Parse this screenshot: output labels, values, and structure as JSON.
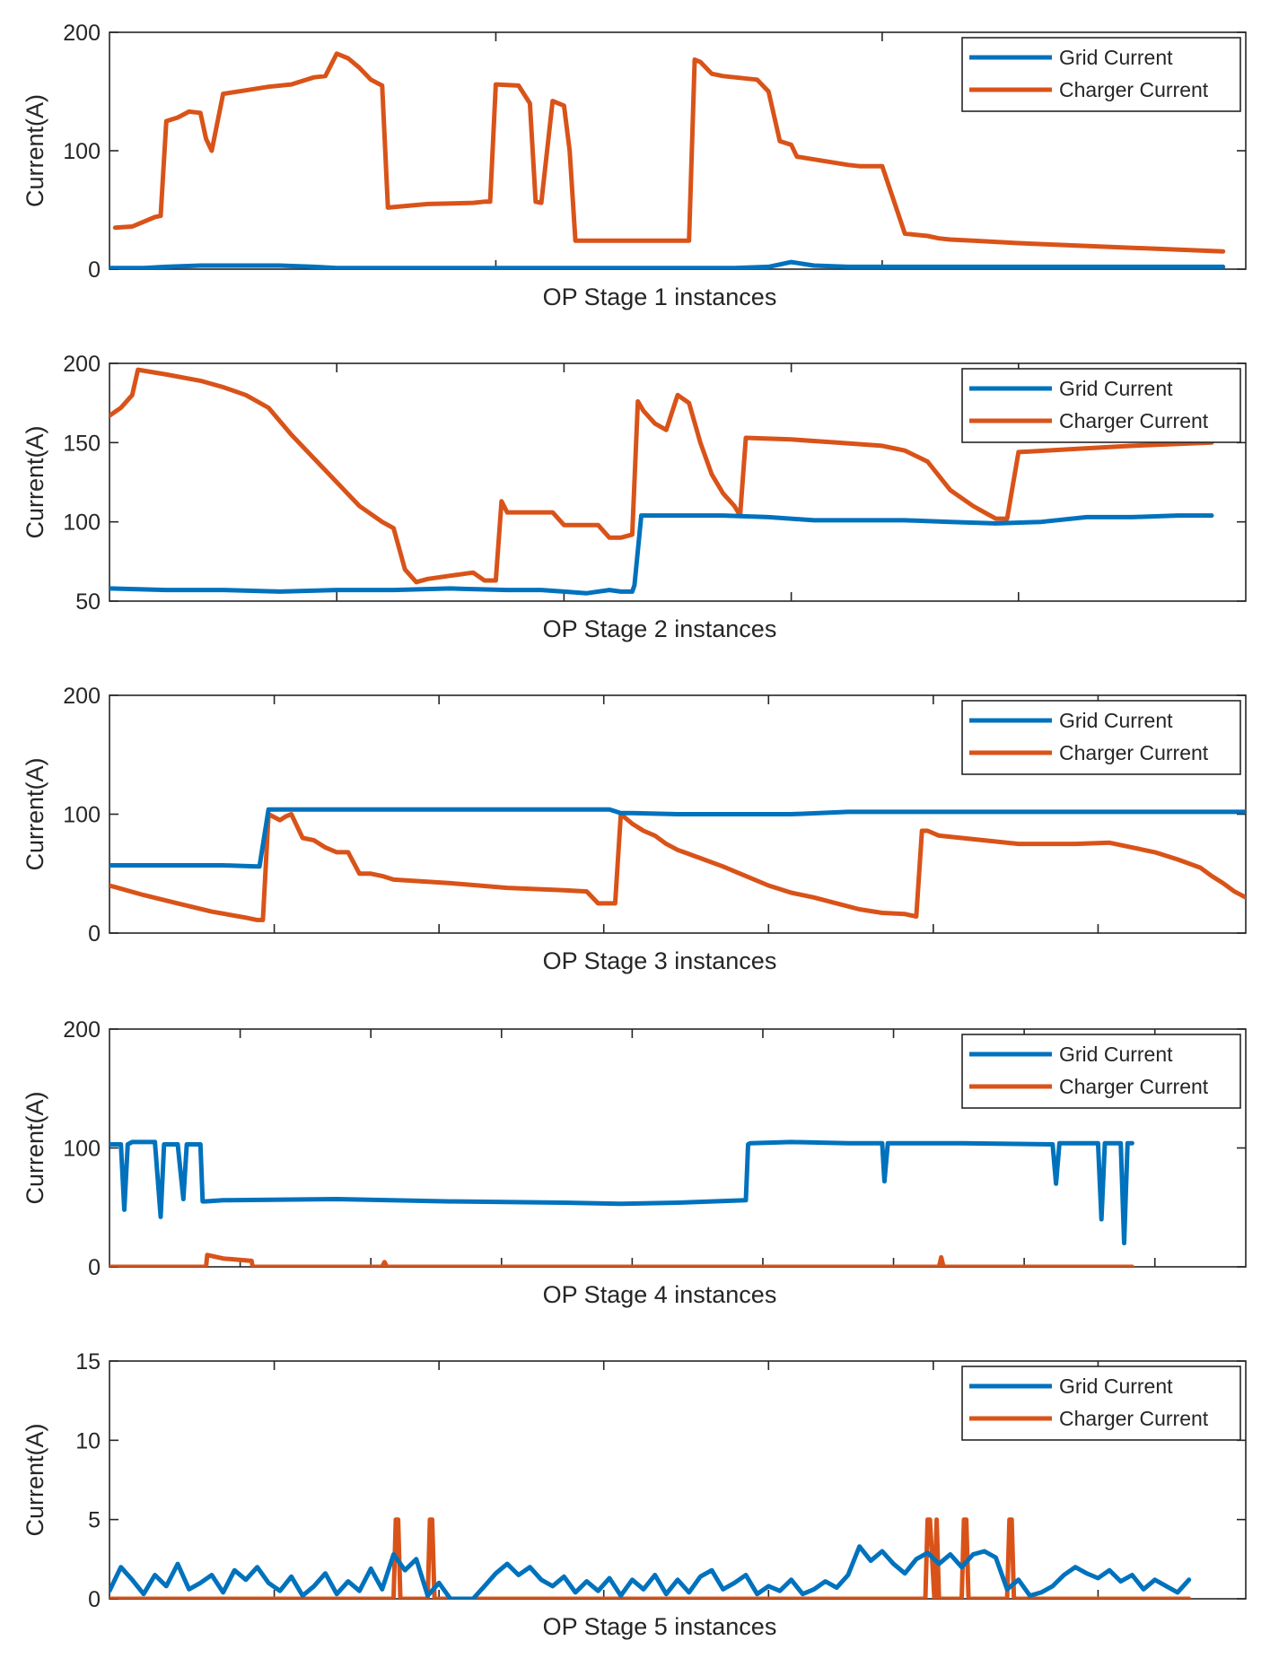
{
  "colors": {
    "grid_current": "#0072BD",
    "charger_current": "#D95319",
    "axis": "#262626"
  },
  "chart_data": [
    {
      "type": "line",
      "title": "",
      "xlabel": "OP Stage 1 instances",
      "ylabel": "Current(A)",
      "xlim": [
        0,
        100
      ],
      "ylim": [
        0,
        200
      ],
      "yticks": [
        0,
        100,
        200
      ],
      "xticks": [
        34,
        68
      ],
      "legend": {
        "position": "top-right",
        "entries": [
          "Grid Current",
          "Charger Current"
        ]
      },
      "series": [
        {
          "name": "Grid Current",
          "x": [
            0,
            3,
            5,
            8,
            12,
            15,
            18,
            20,
            25,
            30,
            35,
            40,
            45,
            50,
            55,
            58,
            60,
            62,
            65,
            70,
            80,
            90,
            98
          ],
          "values": [
            1,
            1,
            2,
            3,
            3,
            3,
            2,
            1,
            1,
            1,
            1,
            1,
            1,
            1,
            1,
            2,
            6,
            3,
            2,
            2,
            2,
            2,
            2
          ]
        },
        {
          "name": "Charger Current",
          "x": [
            0.5,
            2,
            3,
            4,
            4.5,
            5,
            6,
            7,
            8,
            8.5,
            9,
            10,
            12,
            14,
            16,
            17,
            18,
            19,
            20,
            21,
            22,
            23,
            24,
            24.5,
            28,
            32,
            33,
            33.5,
            34,
            36,
            37,
            37.5,
            38,
            39,
            39.5,
            40,
            40.5,
            41,
            45,
            50,
            51,
            51.5,
            52,
            53,
            54,
            57,
            58,
            59,
            60,
            60.5,
            65,
            66,
            68,
            70,
            72,
            73,
            74,
            76,
            80,
            90,
            98
          ],
          "values": [
            35,
            36,
            40,
            44,
            45,
            125,
            128,
            133,
            132,
            110,
            100,
            148,
            151,
            154,
            156,
            159,
            162,
            163,
            182,
            178,
            170,
            160,
            155,
            52,
            55,
            56,
            57,
            57,
            156,
            155,
            140,
            57,
            56,
            142,
            140,
            138,
            100,
            24,
            24,
            24,
            24,
            177,
            175,
            165,
            163,
            160,
            150,
            108,
            105,
            95,
            88,
            87,
            87,
            30,
            28,
            26,
            25,
            24,
            22,
            18,
            15
          ]
        }
      ]
    },
    {
      "type": "line",
      "title": "",
      "xlabel": "OP Stage 2 instances",
      "ylabel": "Current(A)",
      "xlim": [
        0,
        100
      ],
      "ylim": [
        50,
        200
      ],
      "yticks": [
        50,
        100,
        150,
        200
      ],
      "xticks": [
        20,
        40,
        60,
        80
      ],
      "legend": {
        "position": "top-right",
        "entries": [
          "Grid Current",
          "Charger Current"
        ]
      },
      "series": [
        {
          "name": "Grid Current",
          "x": [
            0,
            5,
            10,
            15,
            20,
            25,
            30,
            35,
            38,
            40,
            42,
            44,
            45,
            46,
            46.2,
            46.8,
            50,
            54,
            58,
            62,
            66,
            70,
            74,
            78,
            82,
            86,
            90,
            94,
            97
          ],
          "values": [
            58,
            57,
            57,
            56,
            57,
            57,
            58,
            57,
            57,
            56,
            55,
            57,
            56,
            56,
            60,
            104,
            104,
            104,
            103,
            101,
            101,
            101,
            100,
            99,
            100,
            103,
            103,
            104,
            104
          ]
        },
        {
          "name": "Charger Current",
          "x": [
            0,
            1,
            2,
            2.5,
            5,
            8,
            10,
            12,
            14,
            16,
            18,
            20,
            22,
            24,
            25,
            26,
            27,
            28,
            30,
            32,
            33,
            34,
            34.5,
            35,
            37,
            39,
            40,
            42,
            43,
            44,
            45,
            46,
            46.5,
            47,
            48,
            49,
            50,
            51,
            52,
            53,
            54,
            55,
            55.5,
            56,
            60,
            64,
            68,
            70,
            72,
            74,
            76,
            77,
            78,
            78.5,
            79,
            80,
            85,
            90,
            97
          ],
          "values": [
            167,
            172,
            180,
            196,
            193,
            189,
            185,
            180,
            172,
            155,
            140,
            125,
            110,
            100,
            96,
            70,
            62,
            64,
            66,
            68,
            63,
            63,
            113,
            106,
            106,
            106,
            98,
            98,
            98,
            90,
            90,
            92,
            176,
            170,
            162,
            158,
            180,
            175,
            150,
            130,
            118,
            110,
            104,
            153,
            152,
            150,
            148,
            145,
            138,
            120,
            110,
            106,
            102,
            102,
            102,
            144,
            146,
            148,
            150
          ]
        }
      ]
    },
    {
      "type": "line",
      "title": "",
      "xlabel": "OP Stage 3 instances",
      "ylabel": "Current(A)",
      "xlim": [
        0,
        100
      ],
      "ylim": [
        0,
        200
      ],
      "yticks": [
        0,
        100,
        200
      ],
      "xticks": [
        14.5,
        29,
        43.5,
        58,
        72.5,
        87
      ],
      "legend": {
        "position": "top-right",
        "entries": [
          "Grid Current",
          "Charger Current"
        ]
      },
      "series": [
        {
          "name": "Grid Current",
          "x": [
            0,
            5,
            10,
            13,
            13.2,
            14,
            20,
            25,
            30,
            35,
            40,
            44,
            45,
            46,
            50,
            55,
            60,
            65,
            70,
            75,
            80,
            85,
            90,
            95,
            100
          ],
          "values": [
            57,
            57,
            57,
            56,
            56,
            104,
            104,
            104,
            104,
            104,
            104,
            104,
            101,
            101,
            100,
            100,
            100,
            102,
            102,
            102,
            102,
            102,
            102,
            102,
            102
          ]
        },
        {
          "name": "Charger Current",
          "x": [
            0,
            3,
            6,
            9,
            12,
            13,
            13.5,
            14,
            15,
            15.5,
            16,
            16.5,
            17,
            18,
            19,
            20,
            21,
            22,
            23,
            24,
            25,
            30,
            35,
            40,
            42,
            43,
            44,
            44.5,
            45,
            46,
            47,
            48,
            49,
            50,
            52,
            54,
            56,
            58,
            60,
            62,
            64,
            66,
            68,
            70,
            71,
            71.5,
            72,
            73,
            75,
            80,
            85,
            88,
            90,
            92,
            94,
            96,
            97,
            98,
            99,
            100
          ],
          "values": [
            40,
            32,
            25,
            18,
            13,
            11,
            11,
            100,
            95,
            98,
            100,
            90,
            80,
            78,
            72,
            68,
            68,
            50,
            50,
            48,
            45,
            42,
            38,
            36,
            35,
            25,
            25,
            25,
            100,
            92,
            86,
            82,
            75,
            70,
            63,
            56,
            48,
            40,
            34,
            30,
            25,
            20,
            17,
            16,
            14,
            86,
            86,
            82,
            80,
            75,
            75,
            76,
            72,
            68,
            62,
            55,
            48,
            42,
            35,
            30
          ]
        }
      ]
    },
    {
      "type": "line",
      "title": "",
      "xlabel": "OP Stage 4 instances",
      "ylabel": "Current(A)",
      "xlim": [
        0,
        100
      ],
      "ylim": [
        0,
        200
      ],
      "yticks": [
        0,
        100,
        200
      ],
      "xticks": [
        11.5,
        23,
        34.5,
        46,
        57.5,
        69,
        80.5,
        92
      ],
      "legend": {
        "position": "top-right",
        "entries": [
          "Grid Current",
          "Charger Current"
        ]
      },
      "series": [
        {
          "name": "Grid Current",
          "x": [
            0,
            1,
            1.3,
            1.6,
            2,
            4,
            4.5,
            4.8,
            5.1,
            6,
            6.5,
            6.8,
            7.1,
            8,
            8.2,
            8.4,
            10,
            20,
            30,
            40,
            45,
            50,
            56,
            56.2,
            56.4,
            60,
            65,
            68,
            68.2,
            68.5,
            68.8,
            75,
            83,
            83.3,
            83.6,
            84,
            87,
            87.3,
            87.6,
            88,
            89,
            89.3,
            89.6,
            90
          ],
          "values": [
            103,
            103,
            48,
            103,
            105,
            105,
            42,
            103,
            103,
            103,
            57,
            103,
            103,
            103,
            55,
            55,
            56,
            57,
            55,
            54,
            53,
            54,
            56,
            103,
            104,
            105,
            104,
            104,
            72,
            104,
            104,
            104,
            103,
            70,
            104,
            104,
            104,
            40,
            104,
            104,
            104,
            20,
            104,
            104
          ]
        },
        {
          "name": "Charger Current",
          "x": [
            0,
            5,
            8.5,
            8.6,
            10,
            12.5,
            12.6,
            20,
            24,
            24.2,
            24.4,
            30,
            40,
            50,
            60,
            70,
            73,
            73.2,
            73.4,
            74,
            80,
            90
          ],
          "values": [
            0,
            0,
            0,
            10,
            7,
            5,
            0,
            0,
            0,
            4,
            0,
            0,
            0,
            0,
            0,
            0,
            0,
            8,
            0,
            0,
            0,
            0
          ]
        }
      ]
    },
    {
      "type": "line",
      "title": "",
      "xlabel": "OP Stage 5 instances",
      "ylabel": "Current(A)",
      "xlim": [
        0,
        100
      ],
      "ylim": [
        0,
        15
      ],
      "yticks": [
        0,
        5,
        10,
        15
      ],
      "xticks": [
        14.5,
        29,
        43.5,
        58,
        72.5,
        87
      ],
      "legend": {
        "position": "top-right",
        "entries": [
          "Grid Current",
          "Charger Current"
        ]
      },
      "series": [
        {
          "name": "Grid Current",
          "x": [
            0,
            1,
            2,
            3,
            4,
            5,
            6,
            7,
            8,
            9,
            10,
            11,
            12,
            13,
            14,
            15,
            16,
            17,
            18,
            19,
            20,
            21,
            22,
            23,
            24,
            25,
            26,
            27,
            28,
            29,
            30,
            31,
            32,
            33,
            34,
            35,
            36,
            37,
            38,
            39,
            40,
            41,
            42,
            43,
            44,
            45,
            46,
            47,
            48,
            49,
            50,
            51,
            52,
            53,
            54,
            55,
            56,
            57,
            58,
            59,
            60,
            61,
            62,
            63,
            64,
            65,
            66,
            67,
            68,
            69,
            70,
            71,
            72,
            73,
            74,
            75,
            76,
            77,
            78,
            79,
            80,
            81,
            82,
            83,
            84,
            85,
            86,
            87,
            88,
            89,
            90,
            91,
            92,
            93,
            94,
            95
          ],
          "values": [
            0.5,
            2,
            1.2,
            0.3,
            1.5,
            0.8,
            2.2,
            0.6,
            1,
            1.5,
            0.4,
            1.8,
            1.2,
            2,
            1,
            0.5,
            1.4,
            0.2,
            0.8,
            1.6,
            0.3,
            1.1,
            0.5,
            1.9,
            0.6,
            2.8,
            1.8,
            2.5,
            0.2,
            1,
            0,
            0,
            0,
            0.8,
            1.6,
            2.2,
            1.5,
            2,
            1.2,
            0.8,
            1.4,
            0.4,
            1.1,
            0.5,
            1.3,
            0.2,
            1.2,
            0.6,
            1.5,
            0.3,
            1.2,
            0.4,
            1.4,
            1.8,
            0.6,
            1,
            1.5,
            0.3,
            0.8,
            0.5,
            1.2,
            0.3,
            0.6,
            1.1,
            0.7,
            1.5,
            3.3,
            2.4,
            3,
            2.2,
            1.6,
            2.5,
            2.9,
            2.2,
            2.8,
            2,
            2.8,
            3,
            2.6,
            0.6,
            1.2,
            0.2,
            0.4,
            0.8,
            1.5,
            2,
            1.6,
            1.3,
            1.8,
            1.1,
            1.5,
            0.6,
            1.2,
            0.8,
            0.4,
            1.2
          ]
        },
        {
          "name": "Charger Current",
          "x": [
            0,
            20,
            25,
            25.2,
            25.4,
            25.6,
            26,
            28,
            28.2,
            28.4,
            28.6,
            29,
            40,
            50,
            60,
            70,
            71.8,
            72,
            72.2,
            72.6,
            72.8,
            73,
            74,
            75,
            75.2,
            75.4,
            75.6,
            78,
            79,
            79.2,
            79.4,
            79.6,
            80,
            90,
            95
          ],
          "values": [
            0,
            0,
            0,
            5,
            5,
            0,
            0,
            0,
            5,
            5,
            0,
            0,
            0,
            0,
            0,
            0,
            0,
            5,
            5,
            0,
            5,
            0,
            0,
            0,
            5,
            5,
            0,
            0,
            0,
            5,
            5,
            0,
            0,
            0,
            0
          ]
        }
      ]
    }
  ]
}
